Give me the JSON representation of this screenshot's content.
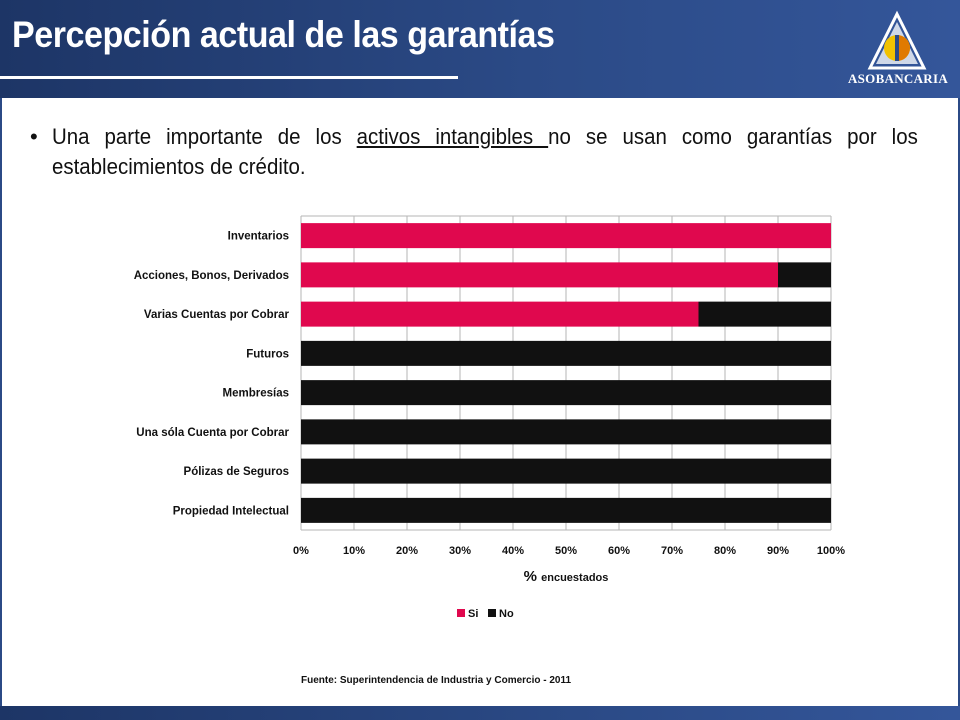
{
  "header": {
    "title": "Percepción actual de las garantías",
    "logo_text": "ASOBANCARIA"
  },
  "bullet": {
    "before": "Una parte importante de los ",
    "underlined": "activos intangibles ",
    "after": "no se usan como garantías por los establecimientos de crédito."
  },
  "chart_data": {
    "type": "bar",
    "orientation": "horizontal",
    "stacked": true,
    "categories": [
      "Inventarios",
      "Acciones, Bonos, Derivados",
      "Varias Cuentas por Cobrar",
      "Futuros",
      "Membresías",
      "Una sóla Cuenta por Cobrar",
      "Pólizas de Seguros",
      "Propiedad Intelectual"
    ],
    "series": [
      {
        "name": "Si",
        "color": "#e0084e",
        "values": [
          100,
          90,
          75,
          0,
          0,
          0,
          0,
          0
        ]
      },
      {
        "name": "No",
        "color": "#111111",
        "values": [
          0,
          10,
          25,
          100,
          100,
          100,
          100,
          100
        ]
      }
    ],
    "xticks": [
      "0%",
      "10%",
      "20%",
      "30%",
      "40%",
      "50%",
      "60%",
      "70%",
      "80%",
      "90%",
      "100%"
    ],
    "xlim": [
      0,
      100
    ],
    "xlabel_main": "%",
    "xlabel_sub": "encuestados",
    "grid": true,
    "legend": "bottom"
  },
  "source": "Fuente: Superintendencia de Industria y Comercio - 2011"
}
